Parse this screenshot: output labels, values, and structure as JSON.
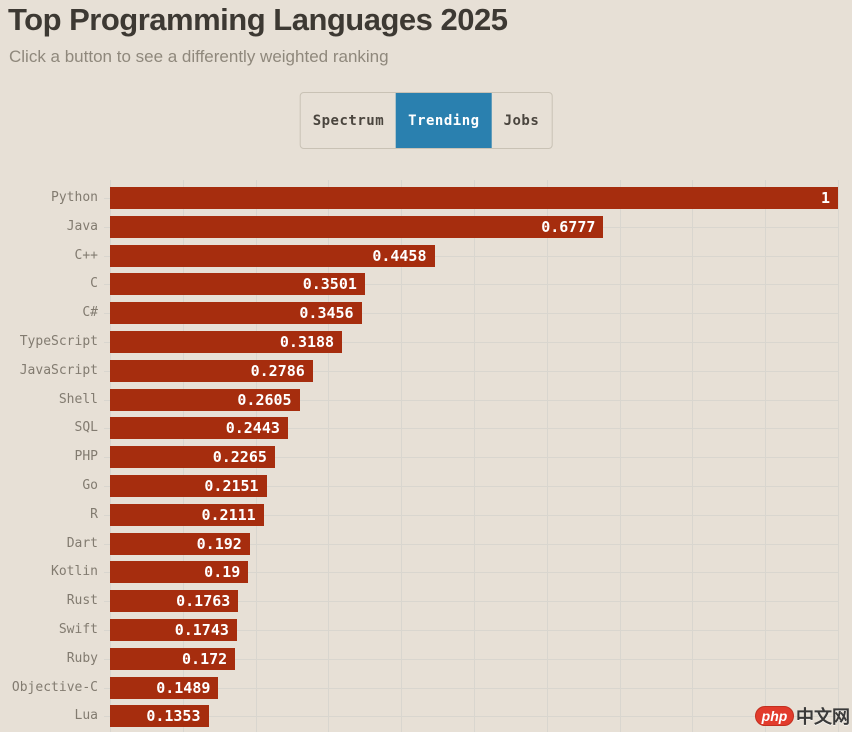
{
  "page": {
    "background_color": "#e7e0d6"
  },
  "header": {
    "title": "Top Programming Languages 2025",
    "subtitle": "Click a button to see a differently weighted ranking"
  },
  "toolbar": {
    "buttons": [
      {
        "label": "Spectrum",
        "active": false
      },
      {
        "label": "Trending",
        "active": true
      },
      {
        "label": "Jobs",
        "active": false
      }
    ],
    "active_color": "#2a80af",
    "inactive_text_color": "#4a453e"
  },
  "chart_data": {
    "type": "bar",
    "orientation": "horizontal",
    "title": "Top Programming Languages 2025",
    "categories": [
      "Python",
      "Java",
      "C++",
      "C",
      "C#",
      "TypeScript",
      "JavaScript",
      "Shell",
      "SQL",
      "PHP",
      "Go",
      "R",
      "Dart",
      "Kotlin",
      "Rust",
      "Swift",
      "Ruby",
      "Objective-C",
      "Lua"
    ],
    "values": [
      1,
      0.6777,
      0.4458,
      0.3501,
      0.3456,
      0.3188,
      0.2786,
      0.2605,
      0.2443,
      0.2265,
      0.2151,
      0.2111,
      0.192,
      0.19,
      0.1763,
      0.1743,
      0.172,
      0.1489,
      0.1353
    ],
    "value_labels": [
      "1",
      "0.6777",
      "0.4458",
      "0.3501",
      "0.3456",
      "0.3188",
      "0.2786",
      "0.2605",
      "0.2443",
      "0.2265",
      "0.2151",
      "0.2111",
      "0.192",
      "0.19",
      "0.1763",
      "0.1743",
      "0.172",
      "0.1489",
      "0.1353"
    ],
    "xlim": [
      0,
      1
    ],
    "gridline_step": 0.1,
    "grid": true,
    "bar_color": "#a62d0e",
    "value_label_color": "#ffffff",
    "gridline_color": "#d9d6cf",
    "category_label_color": "#827b70",
    "legend": false
  },
  "watermark": {
    "badge": "php",
    "text": "中文网",
    "badge_color": "#e23b2c"
  }
}
